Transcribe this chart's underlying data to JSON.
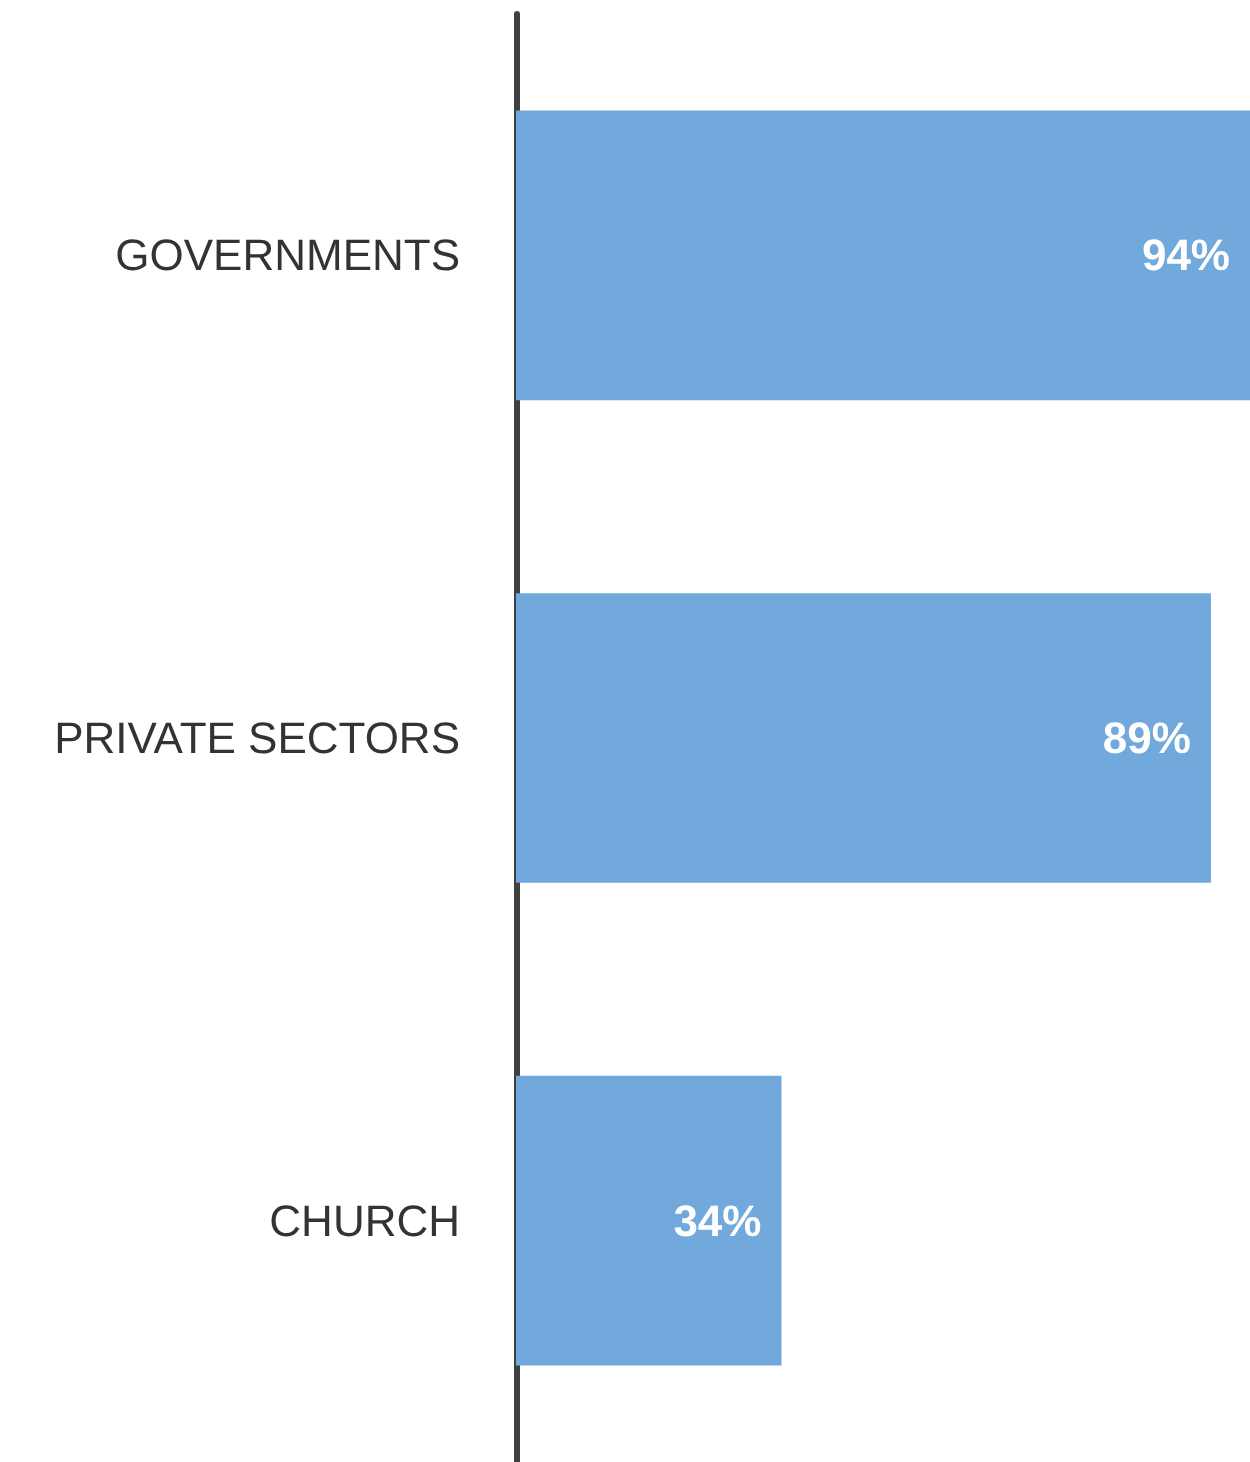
{
  "chart_data": {
    "type": "bar",
    "orientation": "horizontal",
    "categories": [
      "GOVERNMENTS",
      "PRIVATE SECTORS",
      "CHURCH"
    ],
    "values": [
      94,
      89,
      34
    ],
    "value_labels": [
      "94%",
      "89%",
      "34%"
    ],
    "color": "#72a9dc"
  }
}
